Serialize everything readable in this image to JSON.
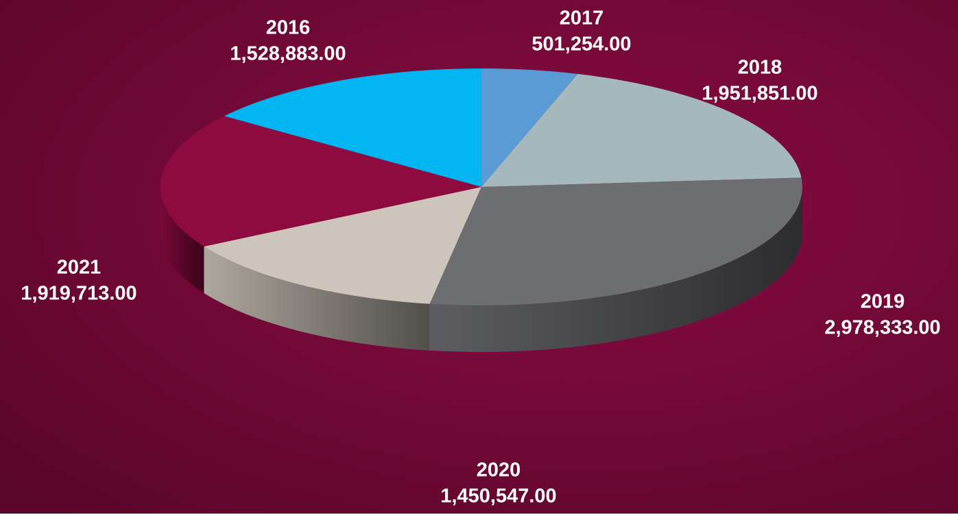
{
  "chart_data": {
    "type": "pie",
    "categories": [
      "2016",
      "2017",
      "2018",
      "2019",
      "2020",
      "2021"
    ],
    "values": [
      1528883,
      501254,
      1951851,
      2978333,
      1450547,
      1919713
    ],
    "value_labels": [
      "1,528,883.00",
      "501,254.00",
      "1,951,851.00",
      "2,978,333.00",
      "1,450,547.00",
      "1,919,713.00"
    ],
    "colors": [
      "#00b5f0",
      "#5b9bd5",
      "#a5b8bc",
      "#6d6e72",
      "#cdc5bb",
      "#8e0b40"
    ]
  }
}
